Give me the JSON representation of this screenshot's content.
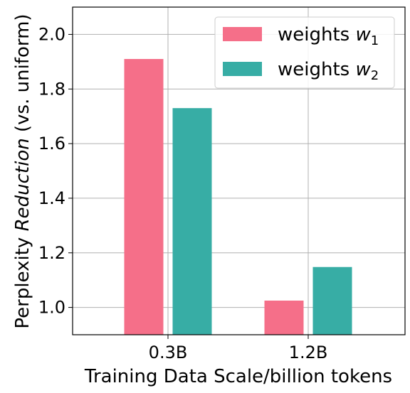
{
  "chart_data": {
    "type": "bar",
    "categories": [
      "0.3B",
      "1.2B"
    ],
    "series": [
      {
        "name": "weights w1",
        "label_base": "weights ",
        "label_var": "w",
        "label_sub": "1",
        "color": "#f56f89",
        "values": [
          1.91,
          1.025
        ]
      },
      {
        "name": "weights w2",
        "label_base": "weights ",
        "label_var": "w",
        "label_sub": "2",
        "color": "#37ada5",
        "values": [
          1.73,
          1.148
        ]
      }
    ],
    "xlabel": "Training Data Scale/billion tokens",
    "ylabel_pre": "Perplexity ",
    "ylabel_italic": "Reduction",
    "ylabel_post": " (vs. uniform)",
    "ylim": [
      0.9,
      2.1
    ],
    "yticks": [
      "1.0",
      "1.2",
      "1.4",
      "1.6",
      "1.8",
      "2.0"
    ],
    "grid": true,
    "legend_position": "top-right"
  }
}
